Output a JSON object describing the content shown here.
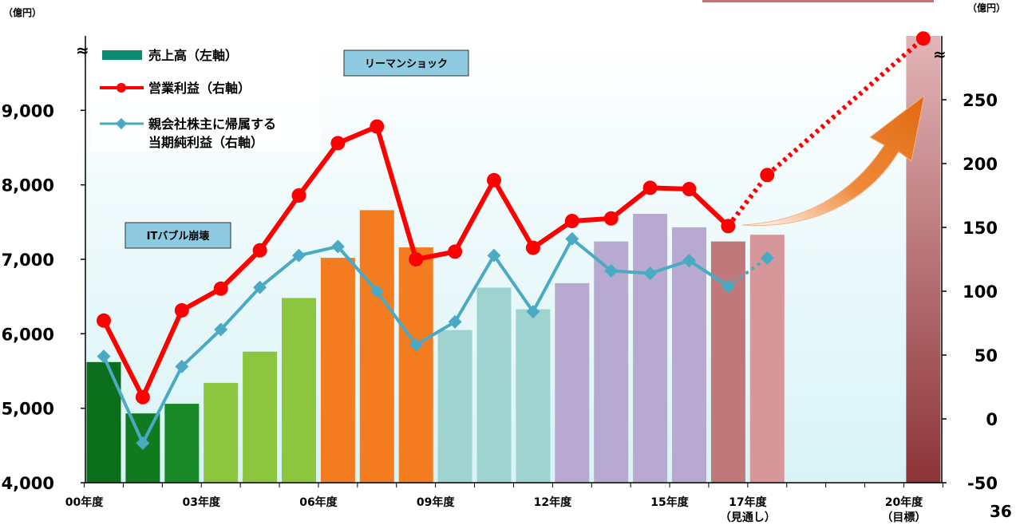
{
  "chart_data": {
    "type": "bar",
    "left_unit": "（億円）",
    "right_unit": "（億円）",
    "page_number": "36",
    "left_axis": {
      "min": 4000,
      "max": 10000,
      "ticks": [
        "4,000",
        "5,000",
        "6,000",
        "7,000",
        "8,000",
        "9,000"
      ],
      "tick_values": [
        4000,
        5000,
        6000,
        7000,
        8000,
        9000
      ]
    },
    "right_axis": {
      "min": -50,
      "max": 300,
      "ticks": [
        "-50",
        "0",
        "50",
        "100",
        "150",
        "200",
        "250"
      ],
      "tick_values": [
        -50,
        0,
        50,
        100,
        150,
        200,
        250
      ]
    },
    "axis_break_symbol": "≈",
    "x_tick_labels": [
      {
        "text": "00年度",
        "index": 0
      },
      {
        "text": "03年度",
        "index": 3
      },
      {
        "text": "06年度",
        "index": 6
      },
      {
        "text": "09年度",
        "index": 9
      },
      {
        "text": "12年度",
        "index": 12
      },
      {
        "text": "15年度",
        "index": 15
      },
      {
        "text": "17年度",
        "sub": "（見通し）",
        "index": 17
      },
      {
        "text": "20年度",
        "sub": "（目標）",
        "index": 21
      }
    ],
    "sales": {
      "name": "売上高（左軸）",
      "axis": "left",
      "values": [
        5620,
        4930,
        5060,
        5340,
        5760,
        6480,
        7020,
        7660,
        7160,
        6050,
        6620,
        6330,
        6680,
        7240,
        7610,
        7430,
        7240,
        7330,
        null,
        null,
        null,
        10000
      ],
      "colors": [
        "#0b6e1a",
        "#117a21",
        "#1a8a28",
        "#8cc63e",
        "#8cc63e",
        "#8cc63e",
        "#f47c20",
        "#f47c20",
        "#f47c20",
        "#9fd3cf",
        "#9fd3cf",
        "#9fd3cf",
        "#b7a9d0",
        "#b7a9d0",
        "#b7a9d0",
        "#b7a9d0",
        "#c0787a",
        "#d7979a",
        null,
        null,
        null,
        "#c98a8e"
      ]
    },
    "operating_income": {
      "name": "営業利益（右軸）",
      "axis": "right",
      "color": "#ff0000",
      "values": [
        77,
        17,
        85,
        102,
        132,
        175,
        216,
        229,
        125,
        131,
        187,
        134,
        155,
        157,
        181,
        180,
        151,
        191,
        null,
        null,
        null,
        298
      ],
      "forecast_from_index": 16
    },
    "net_income": {
      "name_line1": "親会社株主に帰属する",
      "name_line2": "当期純利益（右軸）",
      "axis": "right",
      "color": "#4aaac4",
      "values": [
        49,
        -19,
        41,
        70,
        103,
        128,
        135,
        100,
        58,
        76,
        128,
        84,
        141,
        116,
        114,
        124,
        104,
        126
      ],
      "forecast_from_index": 16
    },
    "annotations": [
      {
        "text": "リーマンショック"
      },
      {
        "text": "ITバブル崩壊"
      }
    ]
  }
}
